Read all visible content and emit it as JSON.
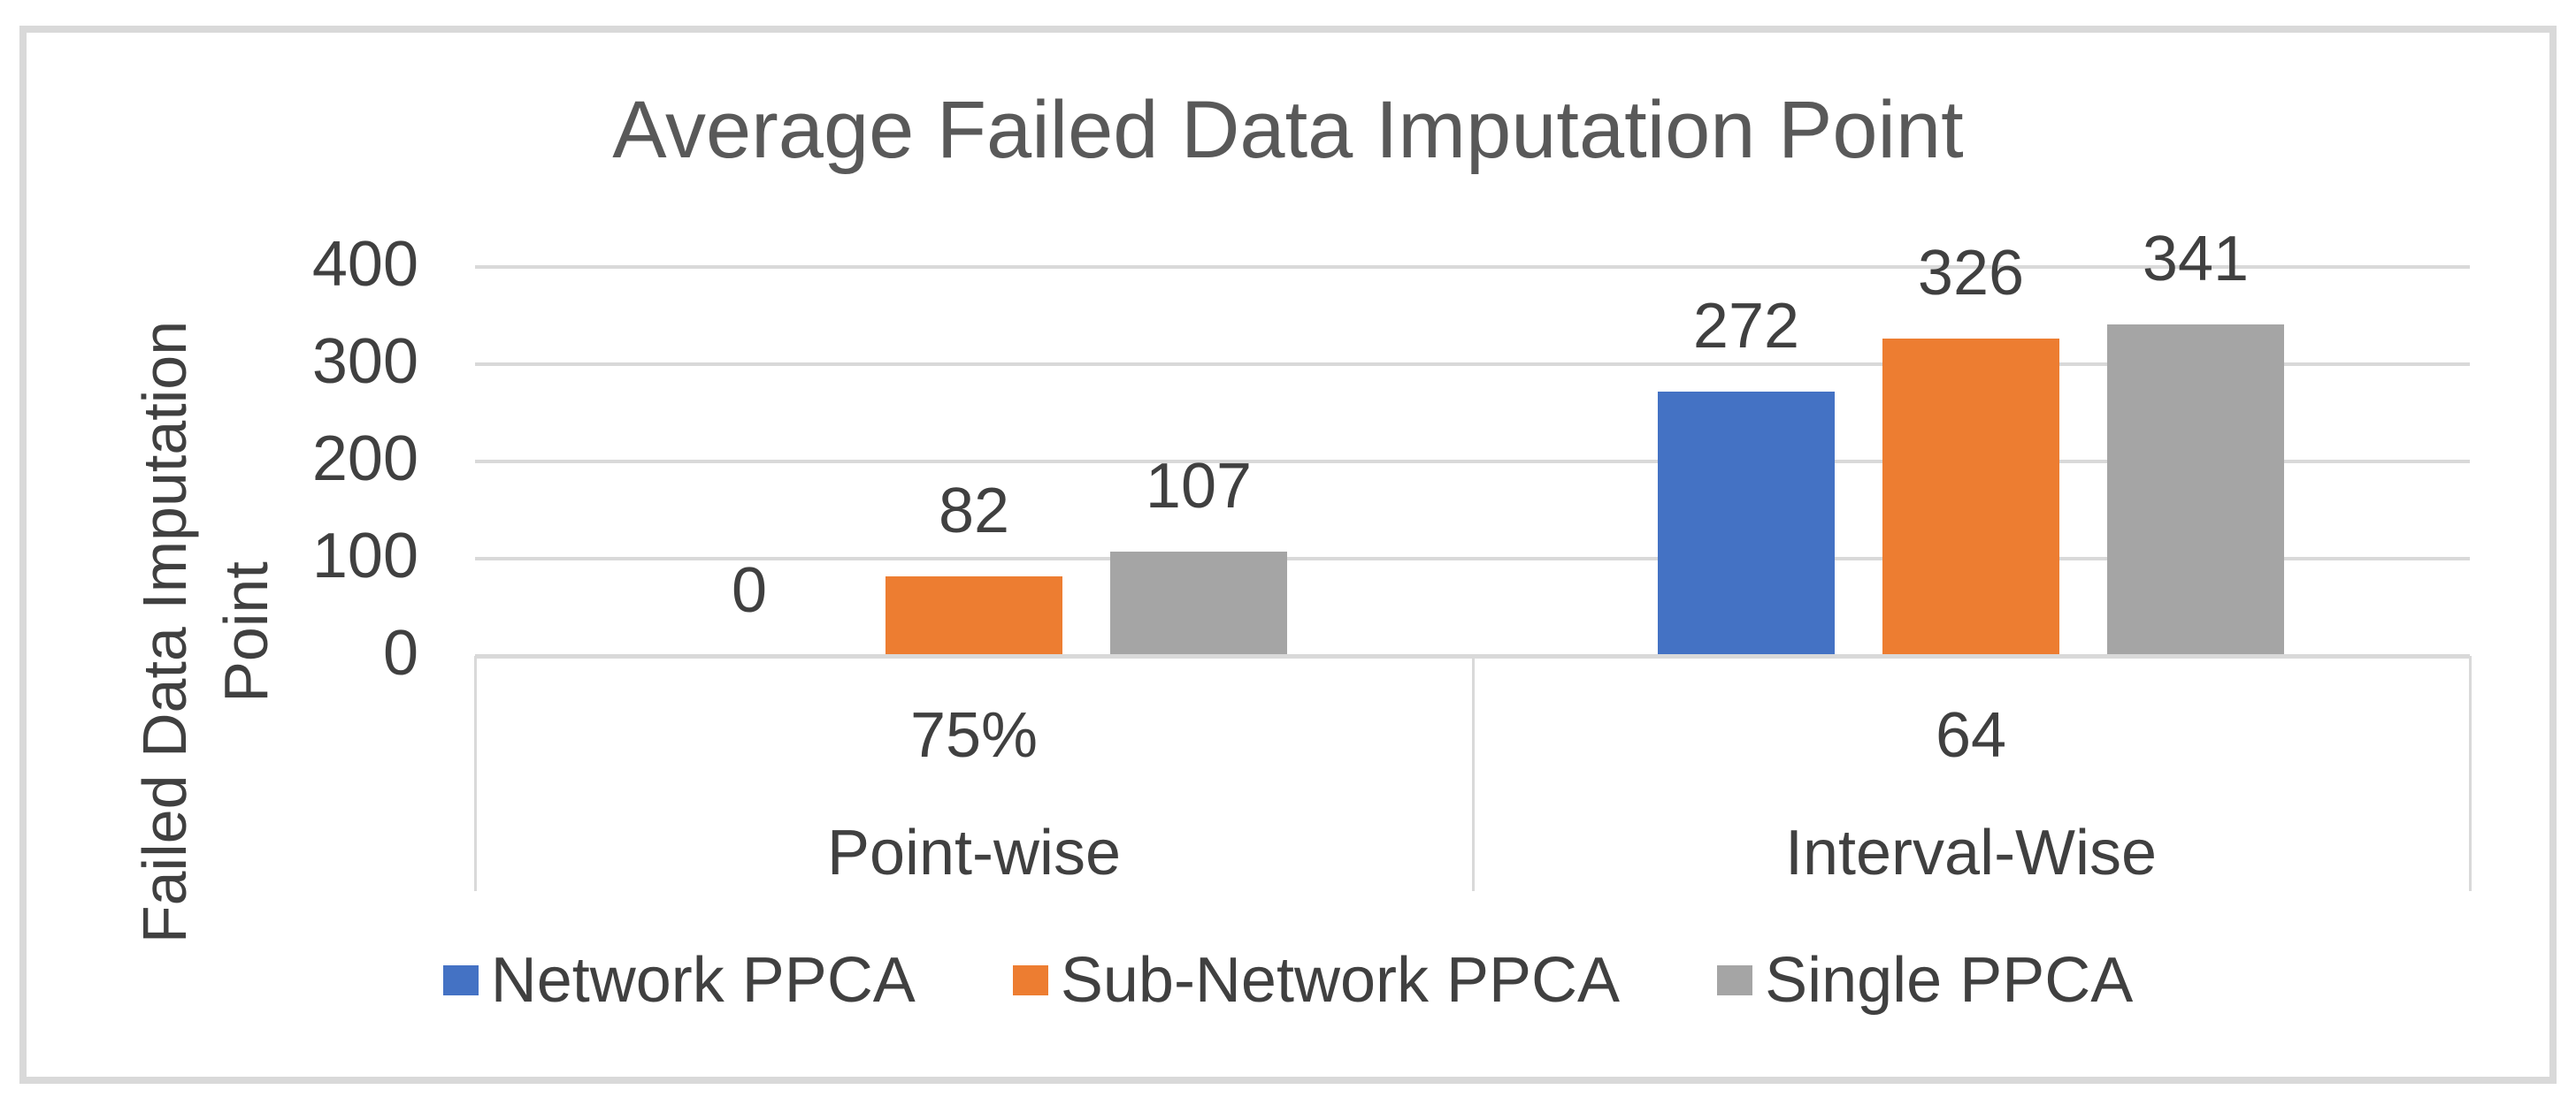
{
  "chart_data": {
    "type": "bar",
    "title": "Average Failed Data Imputation Point",
    "y_axis_title": "Failed Data Imputation Point",
    "categories": [
      "Point-wise",
      "Interval-Wise"
    ],
    "category_sub_labels": [
      "75%",
      "64"
    ],
    "series": [
      {
        "name": "Network PPCA",
        "color": "#4472C4",
        "values": [
          0,
          272
        ]
      },
      {
        "name": "Sub-Network PPCA",
        "color": "#ED7D31",
        "values": [
          82,
          326
        ]
      },
      {
        "name": "Single PPCA",
        "color": "#A5A5A5",
        "values": [
          107,
          341
        ]
      }
    ],
    "y_ticks": [
      0,
      100,
      200,
      300,
      400
    ],
    "ylim": [
      0,
      400
    ],
    "grid": true,
    "data_labels": true,
    "legend_position": "bottom"
  },
  "colors": {
    "grid": "#D9D9D9",
    "frame": "#D9D9D9",
    "title_text": "#595959",
    "label_text": "#404040"
  }
}
